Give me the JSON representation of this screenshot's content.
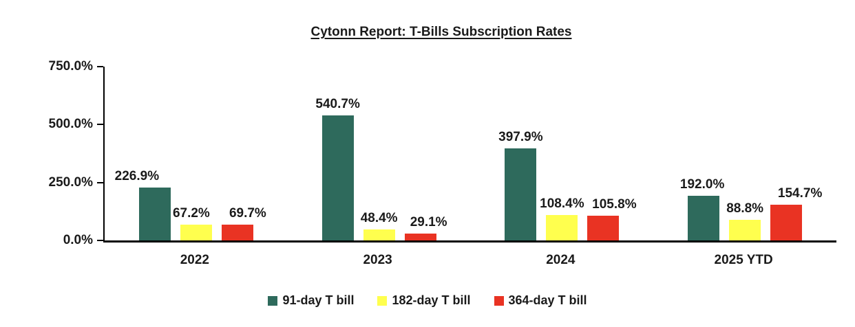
{
  "chart_data": {
    "type": "bar",
    "title": "Cytonn Report: T-Bills Subscription Rates",
    "categories": [
      "2022",
      "2023",
      "2024",
      "2025 YTD"
    ],
    "series": [
      {
        "name": "91-day T bill",
        "color": "#2E6A5C",
        "values": [
          226.9,
          540.7,
          397.9,
          192.0
        ]
      },
      {
        "name": "182-day T bill",
        "color": "#FFFF4E",
        "values": [
          67.2,
          48.4,
          108.4,
          88.8
        ]
      },
      {
        "name": "364-day T bill",
        "color": "#E93323",
        "values": [
          69.7,
          29.1,
          105.8,
          154.7
        ]
      }
    ],
    "y_ticks": [
      "750.0%",
      "500.0%",
      "250.0%",
      "0.0%"
    ],
    "ylim": [
      0,
      750
    ],
    "value_label_format": "one_decimal_percent",
    "label_dx": [
      [
        -26,
        0,
        0,
        -2
      ],
      [
        -7,
        0,
        0,
        0
      ],
      [
        15,
        12,
        16,
        20
      ]
    ],
    "legend_position": "bottom",
    "grid": false,
    "axis_color": "#000000",
    "text_color": "#1a1a1a"
  }
}
